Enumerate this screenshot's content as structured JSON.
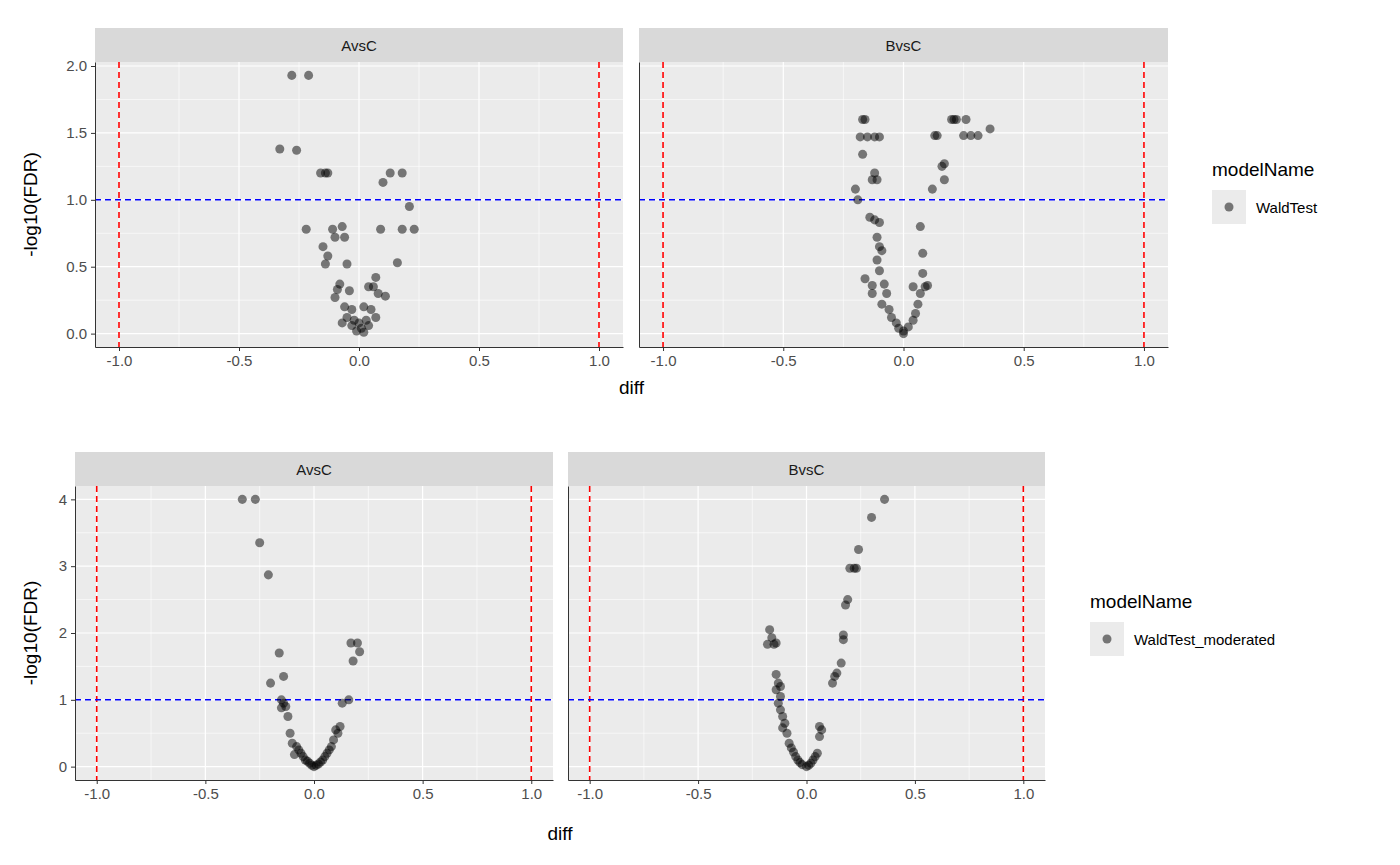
{
  "chart_data": [
    {
      "type": "scatter",
      "x_label": "diff",
      "y_label": "-log10(FDR)",
      "legend_title": "modelName",
      "legend": "right",
      "grid": true,
      "xlim": [
        -1.1,
        1.1
      ],
      "xticks": [
        {
          "value": -1,
          "label": "-1.0"
        },
        {
          "value": -0.5,
          "label": "-0.5"
        },
        {
          "value": 0,
          "label": "0.0"
        },
        {
          "value": 0.5,
          "label": "0.5"
        },
        {
          "value": 1,
          "label": "1.0"
        }
      ],
      "ylim": [
        -0.1,
        2.03
      ],
      "yticks": [
        {
          "value": 0,
          "label": "0.0"
        },
        {
          "value": 0.5,
          "label": "0.5"
        },
        {
          "value": 1,
          "label": "1.0"
        },
        {
          "value": 1.5,
          "label": "1.5"
        },
        {
          "value": 2,
          "label": "2.0"
        }
      ],
      "series": [
        {
          "name": "WaldTest",
          "color": "#000000",
          "marker": "circle"
        }
      ],
      "vlines": {
        "values": [
          -1,
          1
        ],
        "color": "#ff0000",
        "line_style": "dashed"
      },
      "hlines": {
        "values": [
          1
        ],
        "color": "#0000ff",
        "line_style": "dashed"
      },
      "panels": [
        {
          "title": "AvsC",
          "x": [
            -0.28,
            -0.21,
            -0.33,
            -0.26,
            -0.16,
            -0.14,
            -0.13,
            0.13,
            0.18,
            0.1,
            0.21,
            -0.22,
            -0.11,
            -0.07,
            -0.1,
            -0.06,
            -0.15,
            -0.13,
            -0.14,
            -0.05,
            0.09,
            0.18,
            0.23,
            0.16,
            0.07,
            0.06,
            0.04,
            0.08,
            0.11,
            -0.08,
            -0.09,
            -0.04,
            -0.1,
            -0.06,
            -0.03,
            0.02,
            0.05,
            -0.05,
            -0.02,
            0.0,
            0.03,
            0.07,
            -0.07,
            0.01,
            -0.01,
            0.02,
            -0.03,
            0.04
          ],
          "values": [
            1.93,
            1.93,
            1.38,
            1.37,
            1.2,
            1.2,
            1.2,
            1.2,
            1.2,
            1.13,
            0.95,
            0.78,
            0.78,
            0.8,
            0.72,
            0.72,
            0.65,
            0.58,
            0.52,
            0.52,
            0.78,
            0.78,
            0.78,
            0.53,
            0.42,
            0.35,
            0.35,
            0.3,
            0.28,
            0.37,
            0.33,
            0.32,
            0.27,
            0.2,
            0.18,
            0.2,
            0.18,
            0.12,
            0.1,
            0.08,
            0.1,
            0.12,
            0.08,
            0.04,
            0.02,
            0.01,
            0.06,
            0.06
          ]
        },
        {
          "title": "BvsC",
          "x": [
            -0.17,
            -0.16,
            -0.18,
            -0.15,
            -0.12,
            -0.1,
            -0.17,
            -0.2,
            -0.19,
            -0.12,
            -0.13,
            -0.11,
            -0.14,
            -0.12,
            -0.1,
            -0.11,
            -0.1,
            -0.09,
            -0.11,
            -0.1,
            -0.13,
            -0.16,
            -0.13,
            -0.08,
            -0.07,
            -0.09,
            -0.06,
            -0.05,
            -0.03,
            -0.02,
            0.0,
            0.0,
            0.02,
            0.04,
            0.05,
            0.06,
            0.09,
            0.1,
            0.07,
            0.07,
            0.08,
            0.08,
            0.12,
            0.14,
            0.13,
            0.16,
            0.17,
            0.17,
            0.2,
            0.21,
            0.22,
            0.26,
            0.25,
            0.28,
            0.31,
            0.36,
            0.04
          ],
          "values": [
            1.6,
            1.6,
            1.47,
            1.47,
            1.47,
            1.47,
            1.34,
            1.08,
            1.0,
            1.2,
            1.15,
            1.15,
            0.87,
            0.85,
            0.83,
            0.72,
            0.65,
            0.62,
            0.55,
            0.47,
            0.36,
            0.41,
            0.3,
            0.37,
            0.3,
            0.22,
            0.18,
            0.12,
            0.08,
            0.04,
            0.0,
            0.02,
            0.05,
            0.1,
            0.15,
            0.22,
            0.35,
            0.36,
            0.3,
            0.8,
            0.6,
            0.45,
            1.08,
            1.48,
            1.48,
            1.25,
            1.27,
            1.15,
            1.6,
            1.6,
            1.6,
            1.6,
            1.48,
            1.48,
            1.48,
            1.53,
            0.35
          ]
        }
      ]
    },
    {
      "type": "scatter",
      "x_label": "diff",
      "y_label": "-log10(FDR)",
      "legend_title": "modelName",
      "legend": "right",
      "grid": true,
      "xlim": [
        -1.1,
        1.1
      ],
      "xticks": [
        {
          "value": -1,
          "label": "-1.0"
        },
        {
          "value": -0.5,
          "label": "-0.5"
        },
        {
          "value": 0,
          "label": "0.0"
        },
        {
          "value": 0.5,
          "label": "0.5"
        },
        {
          "value": 1,
          "label": "1.0"
        }
      ],
      "ylim": [
        -0.2,
        4.2
      ],
      "yticks": [
        0,
        1,
        2,
        3,
        4
      ],
      "series": [
        {
          "name": "WaldTest_moderated",
          "color": "#000000",
          "marker": "circle"
        }
      ],
      "vlines": {
        "values": [
          -1,
          1
        ],
        "color": "#ff0000",
        "line_style": "dashed"
      },
      "hlines": {
        "values": [
          1
        ],
        "color": "#0000ff",
        "line_style": "dashed"
      },
      "panels": [
        {
          "title": "AvsC",
          "x": [
            -0.33,
            -0.27,
            -0.25,
            -0.21,
            -0.16,
            -0.2,
            -0.14,
            -0.15,
            -0.14,
            -0.15,
            -0.13,
            -0.12,
            -0.11,
            -0.1,
            -0.08,
            -0.07,
            -0.06,
            -0.05,
            -0.04,
            -0.03,
            -0.02,
            -0.01,
            0.0,
            0.01,
            0.02,
            0.03,
            0.04,
            0.05,
            0.06,
            0.07,
            0.09,
            0.1,
            0.11,
            0.12,
            0.13,
            0.16,
            0.17,
            0.2,
            0.18,
            0.21,
            -0.09,
            0.08
          ],
          "values": [
            4.0,
            4.0,
            3.35,
            2.87,
            1.7,
            1.25,
            1.35,
            1.0,
            0.95,
            0.88,
            0.9,
            0.75,
            0.5,
            0.35,
            0.3,
            0.25,
            0.2,
            0.15,
            0.1,
            0.08,
            0.05,
            0.02,
            0.0,
            0.02,
            0.04,
            0.07,
            0.1,
            0.15,
            0.2,
            0.25,
            0.4,
            0.55,
            0.5,
            0.6,
            0.95,
            1.0,
            1.85,
            1.85,
            1.58,
            1.72,
            0.18,
            0.3
          ]
        },
        {
          "title": "BvsC",
          "x": [
            -0.17,
            -0.16,
            -0.18,
            -0.15,
            -0.14,
            -0.14,
            -0.13,
            -0.12,
            -0.14,
            -0.12,
            -0.13,
            -0.12,
            -0.11,
            -0.1,
            -0.11,
            -0.09,
            -0.08,
            -0.07,
            -0.06,
            -0.05,
            -0.04,
            -0.03,
            -0.02,
            0.0,
            0.01,
            0.02,
            0.03,
            0.04,
            0.05,
            0.06,
            0.06,
            0.07,
            0.12,
            0.13,
            0.14,
            0.16,
            0.17,
            0.17,
            0.18,
            0.19,
            0.2,
            0.22,
            0.23,
            0.24,
            0.3,
            0.36
          ],
          "values": [
            2.05,
            1.93,
            1.83,
            1.83,
            1.85,
            1.38,
            1.25,
            1.2,
            1.15,
            1.05,
            0.95,
            0.85,
            0.75,
            0.65,
            0.58,
            0.5,
            0.35,
            0.28,
            0.22,
            0.15,
            0.1,
            0.06,
            0.03,
            0.0,
            0.02,
            0.05,
            0.1,
            0.15,
            0.2,
            0.45,
            0.6,
            0.55,
            1.25,
            1.35,
            1.4,
            1.55,
            1.9,
            1.97,
            2.42,
            2.5,
            2.97,
            2.97,
            2.97,
            3.25,
            3.73,
            4.0
          ]
        }
      ]
    }
  ]
}
